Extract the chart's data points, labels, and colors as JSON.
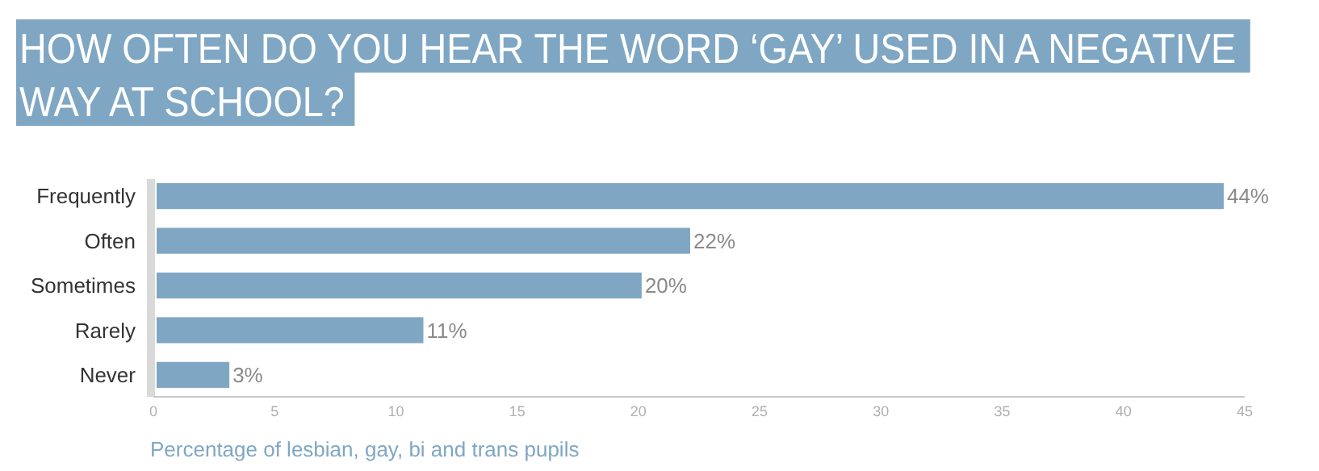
{
  "chart_data": {
    "type": "bar",
    "orientation": "horizontal",
    "title": "HOW OFTEN DO YOU HEAR THE WORD ‘GAY’ USED IN A NEGATIVE WAY AT SCHOOL?",
    "xlabel": "Percentage of lesbian, gay, bi and trans pupils",
    "categories": [
      "Frequently",
      "Often",
      "Sometimes",
      "Rarely",
      "Never"
    ],
    "values": [
      44,
      22,
      20,
      11,
      3
    ],
    "color": "#7fa7c4",
    "value_labels": [
      "44%",
      "22%",
      "20%",
      "11%",
      "3%"
    ],
    "xlim": [
      0,
      45
    ],
    "xticks": [
      0,
      5,
      10,
      15,
      20,
      25,
      30,
      35,
      40,
      45
    ],
    "grid": false
  }
}
